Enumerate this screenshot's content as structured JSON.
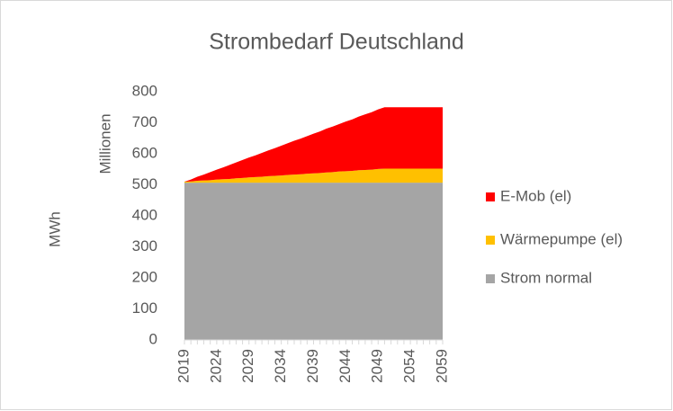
{
  "chart_data": {
    "type": "stacked_area",
    "title": "Strombedarf Deutschland",
    "y_label": "MWh",
    "y_unit_label": "Millionen",
    "x": [
      2019,
      2020,
      2021,
      2022,
      2023,
      2024,
      2025,
      2026,
      2027,
      2028,
      2029,
      2030,
      2031,
      2032,
      2033,
      2034,
      2035,
      2036,
      2037,
      2038,
      2039,
      2040,
      2041,
      2042,
      2043,
      2044,
      2045,
      2046,
      2047,
      2048,
      2049,
      2050,
      2051,
      2052,
      2053,
      2054,
      2055,
      2056,
      2057,
      2058,
      2059
    ],
    "xlim": [
      2019,
      2059
    ],
    "xticks": [
      2019,
      2024,
      2029,
      2034,
      2039,
      2044,
      2049,
      2054,
      2059
    ],
    "ylim": [
      0,
      800
    ],
    "yticks": [
      0,
      100,
      200,
      300,
      400,
      500,
      600,
      700,
      800
    ],
    "legend": "right",
    "series": [
      {
        "name": "Strom normal",
        "color": "#a5a5a5",
        "values": [
          507,
          507,
          507,
          507,
          507,
          507,
          507,
          507,
          507,
          507,
          507,
          507,
          507,
          507,
          507,
          507,
          507,
          507,
          507,
          507,
          507,
          507,
          507,
          507,
          507,
          507,
          507,
          507,
          507,
          507,
          507,
          507,
          507,
          507,
          507,
          507,
          507,
          507,
          507,
          507,
          507
        ]
      },
      {
        "name": "Wärmepumpe (el)",
        "color": "#ffc000",
        "values": [
          3,
          4,
          6,
          7,
          8,
          10,
          11,
          12,
          14,
          15,
          17,
          18,
          19,
          21,
          22,
          23,
          25,
          26,
          27,
          29,
          30,
          31,
          33,
          34,
          36,
          37,
          38,
          40,
          41,
          42,
          44,
          45,
          45,
          45,
          45,
          45,
          45,
          45,
          45,
          45,
          45
        ]
      },
      {
        "name": "E-Mob (el)",
        "color": "#ff0000",
        "values": [
          0,
          6,
          13,
          19,
          26,
          32,
          38,
          45,
          51,
          58,
          64,
          70,
          77,
          83,
          89,
          96,
          102,
          109,
          115,
          121,
          128,
          134,
          141,
          147,
          153,
          160,
          166,
          173,
          179,
          185,
          192,
          198,
          198,
          198,
          198,
          198,
          198,
          198,
          198,
          198,
          198
        ]
      }
    ]
  }
}
